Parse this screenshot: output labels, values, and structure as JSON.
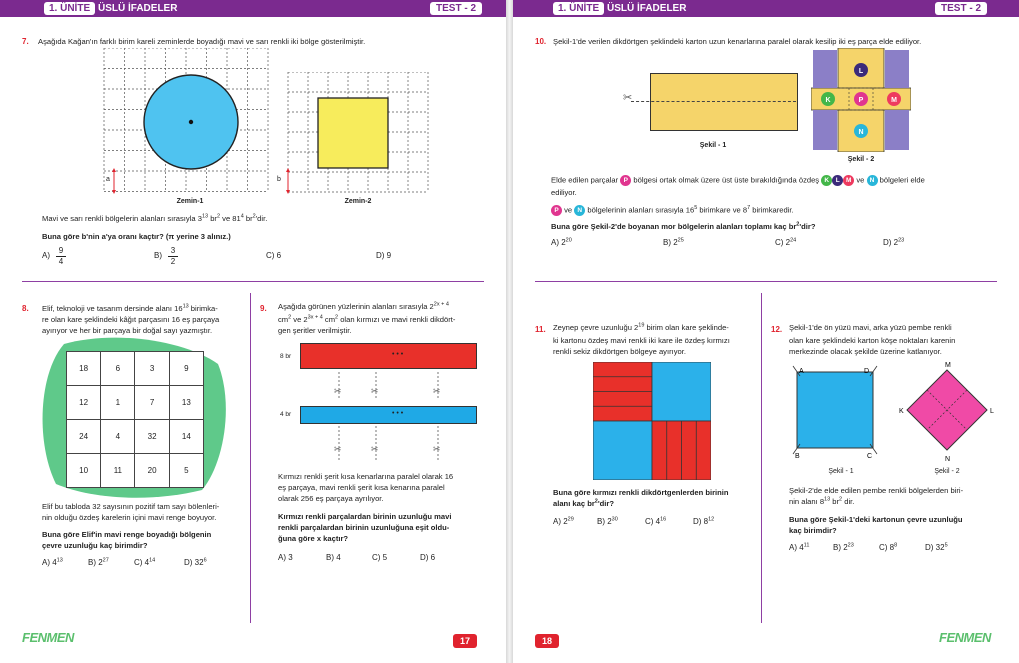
{
  "header": {
    "unit_label": "1. ÜNİTE",
    "unit_title": "ÜSLÜ İFADELER",
    "test_label": "TEST - 2"
  },
  "footer": {
    "left_page_number": "17",
    "right_page_number": "18",
    "logo_text": "FENMEN"
  },
  "q7": {
    "number": "7.",
    "prompt": "Aşağıda Kağan'ın farklı birim kareli zeminlerde boyadığı mavi ve sarı renkli iki bölge gösterilmiştir.",
    "caption1": "Zemin-1",
    "caption2": "Zemin-2",
    "label_a": "a",
    "label_b": "b",
    "areas_pre": "Mavi ve sarı renkli bölgelerin alanları sırasıyla 3",
    "areas_sup1": "13",
    "areas_mid1": " br",
    "areas_sup2": "2",
    "areas_mid2": " ve 81",
    "areas_sup3": "4",
    "areas_mid3": " br",
    "areas_sup4": "2",
    "areas_post": "'dir.",
    "question": "Buna göre b'nin a'ya oranı kaçtır? (π yerine 3 alınız.)",
    "opt_a_label": "A)",
    "opt_a_num": "9",
    "opt_a_den": "4",
    "opt_b_label": "B)",
    "opt_b_num": "3",
    "opt_b_den": "2",
    "opt_c": "C) 6",
    "opt_d": "D) 9",
    "colors": {
      "circle": "#4fc3f0",
      "square": "#f7ec5c"
    }
  },
  "q8": {
    "number": "8.",
    "line1": "Elif, teknoloji ve tasarım dersinde alanı 16",
    "line1_sup": "13",
    "line1_post": " birimka-",
    "line2": "re olan kare şeklindeki kâğıt parçasını 16 eş parçaya",
    "line3": "ayırıyor ve her bir parçaya bir doğal sayı yazmıştır.",
    "grid": [
      [
        "18",
        "6",
        "3",
        "9"
      ],
      [
        "12",
        "1",
        "7",
        "13"
      ],
      [
        "24",
        "4",
        "32",
        "14"
      ],
      [
        "10",
        "11",
        "20",
        "5"
      ]
    ],
    "body1": "Elif bu tabloda 32 sayısının pozitif tam sayı bölenleri-",
    "body2": "nin olduğu özdeş karelerin içini mavi renge boyuyor.",
    "q1": "Buna göre Elif'in mavi renge boyadığı bölgenin",
    "q2": "çevre uzunluğu kaç birimdir?",
    "opt_a": "A) 4",
    "opt_a_sup": "13",
    "opt_b": "B) 2",
    "opt_b_sup": "27",
    "opt_c": "C) 4",
    "opt_c_sup": "14",
    "opt_d": "D) 32",
    "opt_d_sup": "6",
    "colors": {
      "backdrop": "#5fc98a"
    }
  },
  "q9": {
    "number": "9.",
    "line1": "Aşağıda görünen yüzlerinin alanları sırasıyla 2",
    "line1_sup": "2x + 4",
    "line2a": "cm",
    "line2_sup1": "2",
    "line2b": " ve 2",
    "line2_sup2": "3x + 4",
    "line2c": " cm",
    "line2_sup3": "2",
    "line2d": " olan kırmızı ve mavi renkli dikdört-",
    "line3": "gen şeritler verilmiştir.",
    "red_height_label": "8 br",
    "blue_height_label": "4 br",
    "dots": "• • •",
    "body1": "Kırmızı renkli şerit kısa kenarlarına paralel olarak 16",
    "body2": "eş parçaya, mavi renkli şerit kısa kenarına paralel",
    "body3": "olarak 256 eş parçaya ayrılıyor.",
    "q1": "Kırmızı renkli parçalardan birinin uzunluğu mavi",
    "q2": "renkli parçalardan birinin uzunluğuna eşit oldu-",
    "q3": "ğuna göre x kaçtır?",
    "opt_a": "A) 3",
    "opt_b": "B) 4",
    "opt_c": "C) 5",
    "opt_d": "D) 6",
    "colors": {
      "red": "#e8302a",
      "blue": "#1fa9e6"
    }
  },
  "q10": {
    "number": "10.",
    "prompt": "Şekil-1'de verilen dikdörtgen şeklindeki karton uzun kenarlarına paralel olarak kesilip iki eş parça elde ediliyor.",
    "caption1": "Şekil - 1",
    "caption2": "Şekil - 2",
    "circle_labels": {
      "L": "L",
      "K": "K",
      "P": "P",
      "M": "M",
      "N": "N"
    },
    "body1": "Elde edilen parçalar",
    "body1b": "bölgesi ortak olmak üzere üst üste bırakıldığında özdeş",
    "body1c": "ve",
    "body1d": "bölgeleri elde",
    "body2": "ediliyor.",
    "body3a": "ve",
    "body3b": "bölgelerinin alanları sırasıyla 16",
    "body3_sup1": "5",
    "body3c": " birimkare ve 8",
    "body3_sup2": "7",
    "body3d": " birimkaredir.",
    "question": "Buna göre Şekil-2'de boyanan mor bölgelerin alanları toplamı kaç br",
    "question_sup": "2",
    "question_post": "'dir?",
    "opt_a": "A) 2",
    "opt_a_sup": "20",
    "opt_b": "B) 2",
    "opt_b_sup": "25",
    "opt_c": "C) 2",
    "opt_c_sup": "24",
    "opt_d": "D) 2",
    "opt_d_sup": "23",
    "colors": {
      "yellow": "#f5d46a",
      "purple": "#8b7fc7",
      "K": "#43b649",
      "L": "#3b2a7a",
      "P": "#e0358f",
      "M": "#ee3a5f",
      "N": "#28b6d9"
    }
  },
  "q11": {
    "number": "11.",
    "line1": "Zeynep çevre uzunluğu 2",
    "line1_sup": "19",
    "line1_post": " birim olan kare şeklinde-",
    "line2": "ki kartonu özdeş mavi renkli iki kare ile özdeş kırmızı",
    "line3": "renkli sekiz dikdörtgen bölgeye ayırıyor.",
    "q1": "Buna göre kırmızı renkli dikdörtgenlerden birinin",
    "q2": "alanı kaç br",
    "q2_sup": "2",
    "q2_post": "'dir?",
    "opt_a": "A) 2",
    "opt_a_sup": "29",
    "opt_b": "B) 2",
    "opt_b_sup": "30",
    "opt_c": "C) 4",
    "opt_c_sup": "16",
    "opt_d": "D) 8",
    "opt_d_sup": "12",
    "colors": {
      "red": "#e8302a",
      "blue": "#2bb1ea"
    }
  },
  "q12": {
    "number": "12.",
    "line1": "Şekil-1'de ön yüzü mavi, arka yüzü pembe renkli",
    "line2": "olan kare şeklindeki karton köşe noktaları karenin",
    "line3": "merkezinde olacak şekilde üzerine katlanıyor.",
    "labels_sq": {
      "A": "A",
      "B": "B",
      "C": "C",
      "D": "D"
    },
    "labels_dm": {
      "M": "M",
      "K": "K",
      "L": "L",
      "N": "N"
    },
    "caption1": "Şekil - 1",
    "caption2": "Şekil - 2",
    "body1": "Şekil-2'de elde edilen pembe renkli bölgelerden biri-",
    "body2": "nin alanı 8",
    "body2_sup": "13",
    "body2b": " br",
    "body2_sup2": "2",
    "body2_post": " dir.",
    "q1": "Buna göre Şekil-1'deki kartonun çevre uzunluğu",
    "q2": "kaç birimdir?",
    "opt_a": "A) 4",
    "opt_a_sup": "11",
    "opt_b": "B) 2",
    "opt_b_sup": "23",
    "opt_c": "C) 8",
    "opt_c_sup": "8",
    "opt_d": "D) 32",
    "opt_d_sup": "5",
    "colors": {
      "blue": "#2bb1ea",
      "pink": "#f04aa6"
    }
  }
}
